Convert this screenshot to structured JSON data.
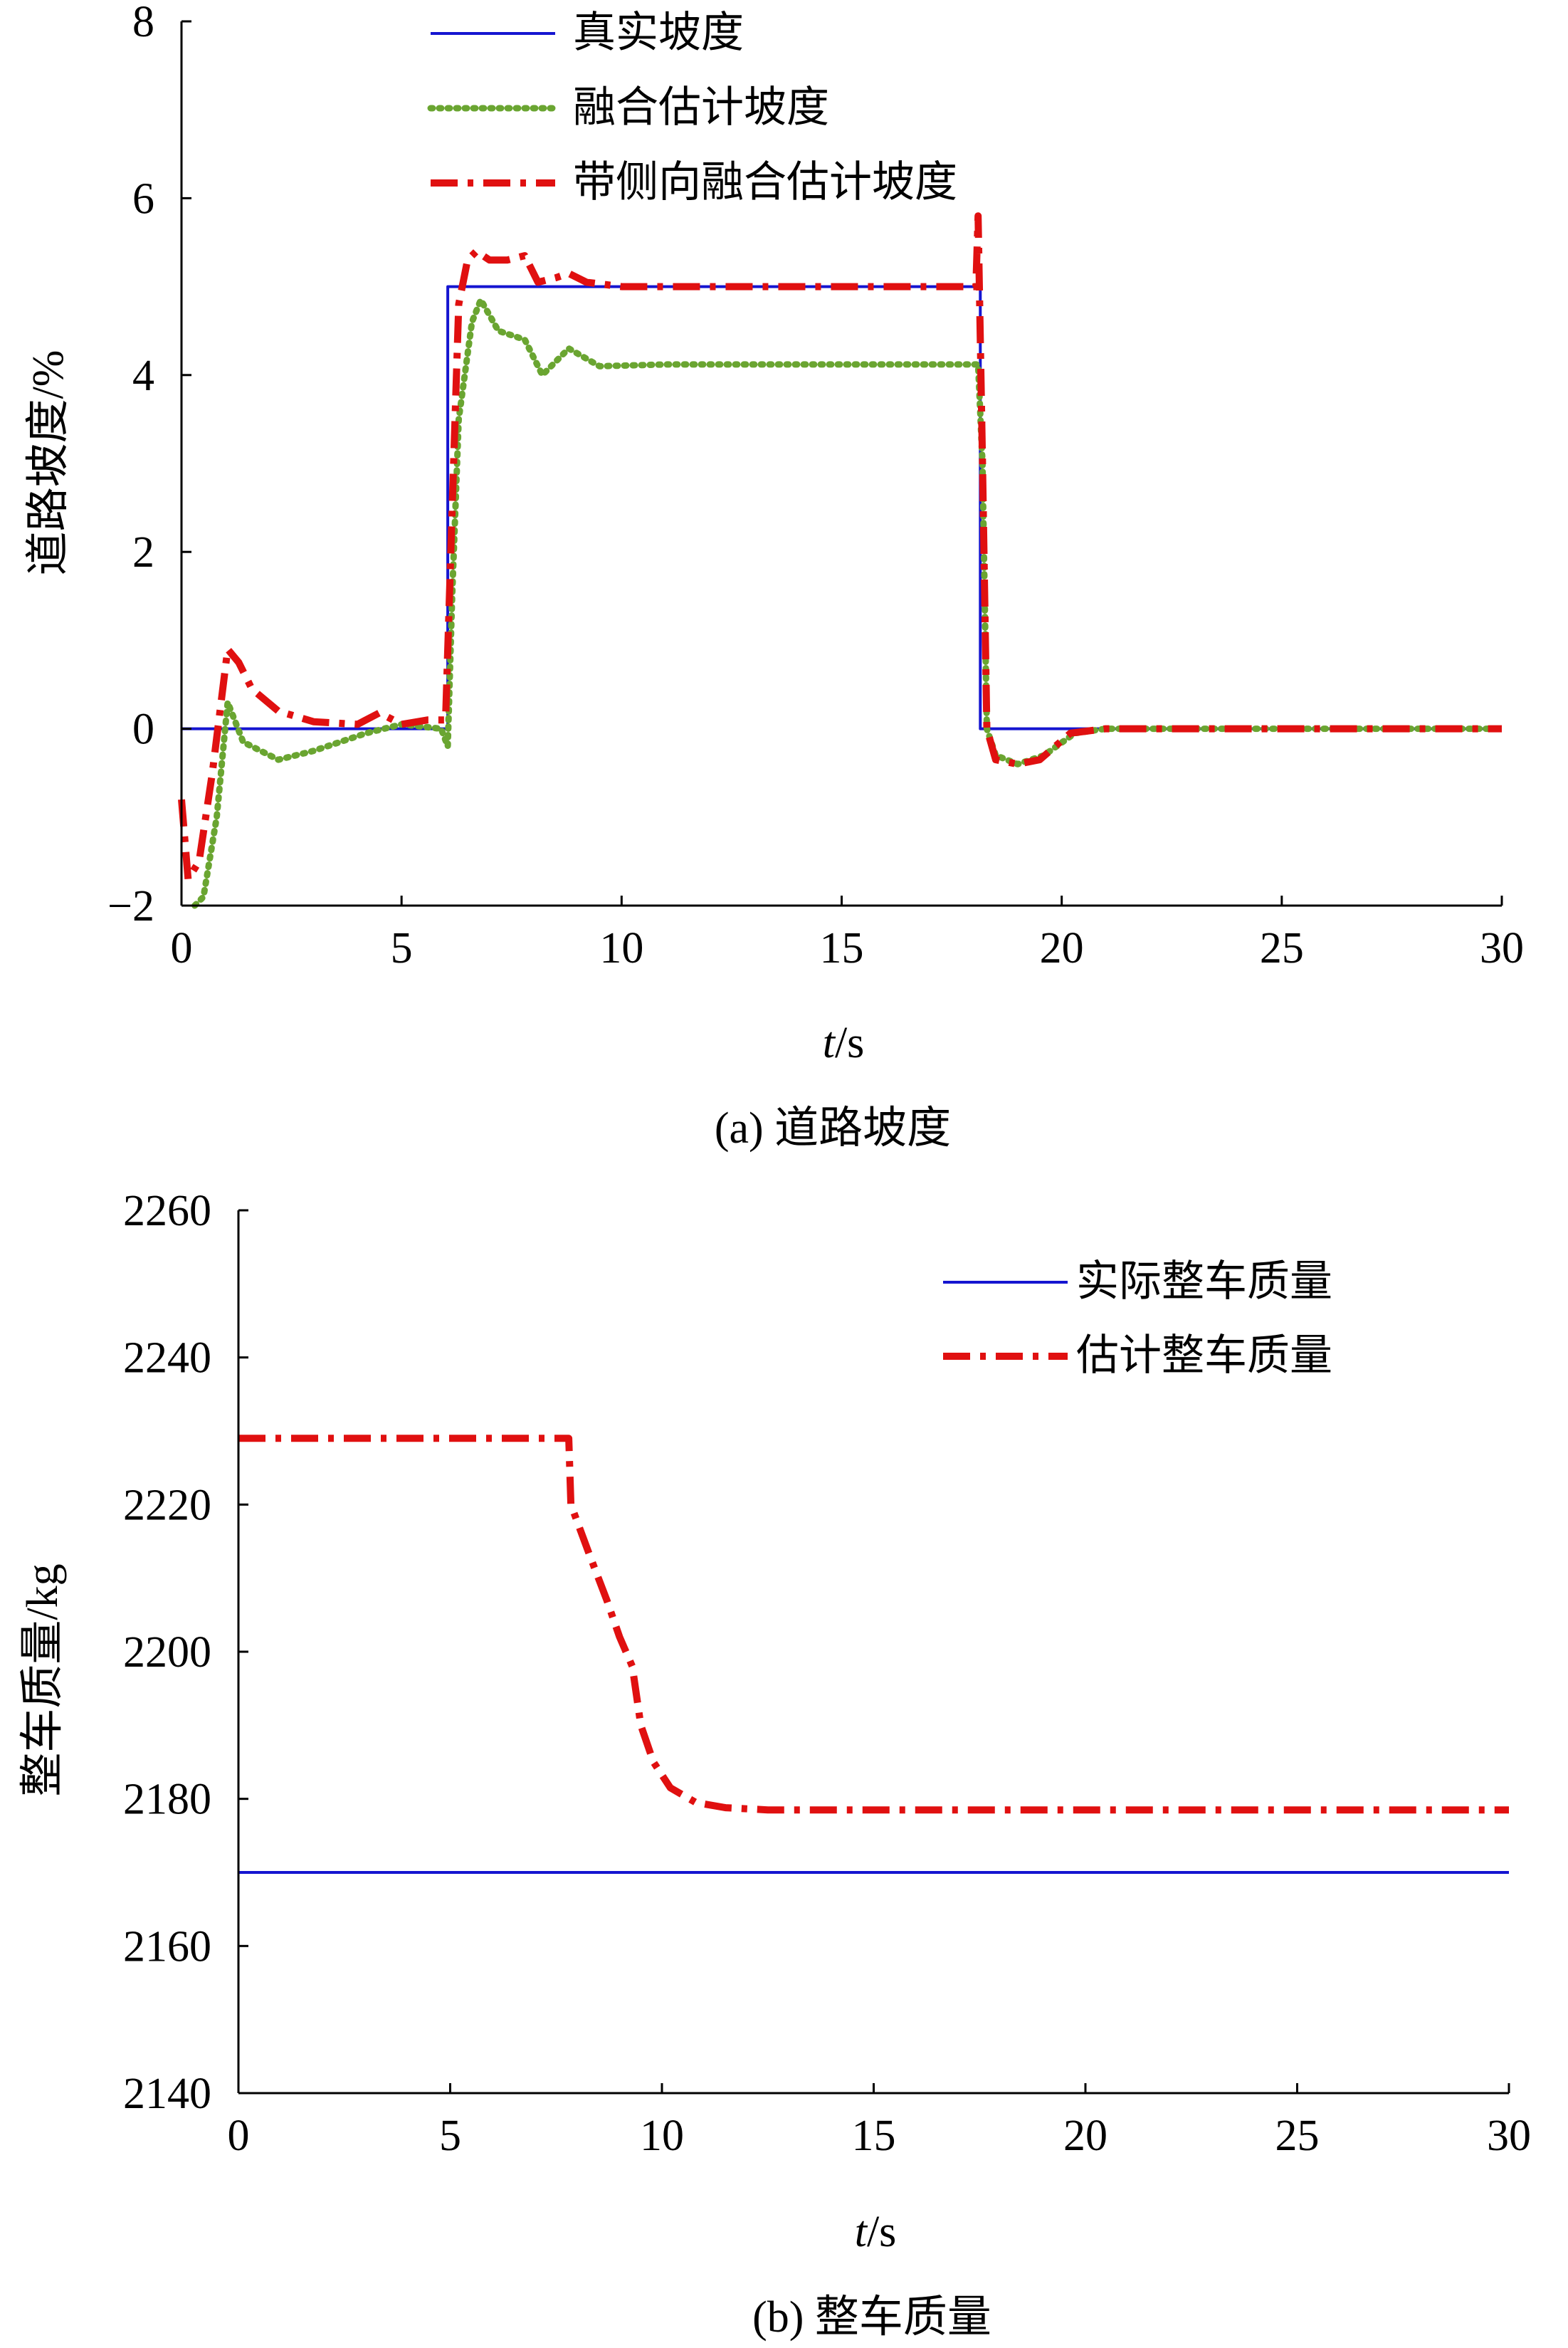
{
  "chart_data": [
    {
      "id": "a",
      "type": "line",
      "caption": "(a) 道路坡度",
      "xlabel_italic": "t",
      "xlabel_unit": "/s",
      "ylabel": "道路坡度/%",
      "xlim": [
        0,
        30
      ],
      "ylim": [
        -2,
        8
      ],
      "xticks": [
        0,
        5,
        10,
        15,
        20,
        25,
        30
      ],
      "yticks": [
        -2,
        0,
        2,
        4,
        6,
        8
      ],
      "ytick_labels": [
        "−2",
        "0",
        "2",
        "4",
        "6",
        "8"
      ],
      "legend_position": "top-center",
      "series": [
        {
          "name": "真实坡度",
          "color": "#1515d0",
          "style": "solid",
          "points": [
            [
              0,
              0
            ],
            [
              6.05,
              0
            ],
            [
              6.05,
              5
            ],
            [
              18.15,
              5
            ],
            [
              18.15,
              0
            ],
            [
              30,
              0
            ]
          ]
        },
        {
          "name": "融合估计坡度",
          "color": "#6aa531",
          "style": "dotted",
          "points": [
            [
              0.3,
              -2
            ],
            [
              0.5,
              -1.9
            ],
            [
              0.8,
              -1
            ],
            [
              1.05,
              0.3
            ],
            [
              1.4,
              -0.15
            ],
            [
              2.2,
              -0.35
            ],
            [
              3.0,
              -0.25
            ],
            [
              4.2,
              -0.05
            ],
            [
              5.0,
              0.05
            ],
            [
              5.9,
              0.0
            ],
            [
              6.05,
              -0.2
            ],
            [
              6.15,
              1.5
            ],
            [
              6.3,
              3.5
            ],
            [
              6.6,
              4.6
            ],
            [
              6.8,
              4.85
            ],
            [
              7.2,
              4.5
            ],
            [
              7.8,
              4.4
            ],
            [
              8.2,
              4.0
            ],
            [
              8.8,
              4.3
            ],
            [
              9.5,
              4.1
            ],
            [
              11,
              4.12
            ],
            [
              15,
              4.12
            ],
            [
              18.1,
              4.12
            ],
            [
              18.2,
              3.0
            ],
            [
              18.3,
              0.0
            ],
            [
              18.5,
              -0.3
            ],
            [
              19.0,
              -0.4
            ],
            [
              19.6,
              -0.3
            ],
            [
              20.3,
              -0.05
            ],
            [
              21,
              0
            ],
            [
              30,
              0
            ]
          ]
        },
        {
          "name": "带侧向融合估计坡度",
          "color": "#e01010",
          "style": "dashdot",
          "points": [
            [
              0,
              -0.8
            ],
            [
              0.15,
              -1.7
            ],
            [
              0.4,
              -1.5
            ],
            [
              0.7,
              -0.5
            ],
            [
              1.05,
              0.9
            ],
            [
              1.3,
              0.75
            ],
            [
              1.6,
              0.45
            ],
            [
              2.2,
              0.2
            ],
            [
              3.0,
              0.08
            ],
            [
              4.0,
              0.05
            ],
            [
              4.5,
              0.18
            ],
            [
              5.0,
              0.05
            ],
            [
              5.6,
              0.1
            ],
            [
              6.0,
              0.1
            ],
            [
              6.15,
              2.5
            ],
            [
              6.3,
              4.8
            ],
            [
              6.5,
              5.3
            ],
            [
              6.7,
              5.4
            ],
            [
              7.0,
              5.3
            ],
            [
              7.4,
              5.3
            ],
            [
              7.8,
              5.35
            ],
            [
              8.1,
              5.05
            ],
            [
              8.5,
              5.1
            ],
            [
              8.8,
              5.15
            ],
            [
              9.2,
              5.05
            ],
            [
              10,
              5.0
            ],
            [
              18.05,
              5.0
            ],
            [
              18.1,
              5.8
            ],
            [
              18.2,
              3.0
            ],
            [
              18.3,
              0.0
            ],
            [
              18.5,
              -0.35
            ],
            [
              19.0,
              -0.4
            ],
            [
              19.5,
              -0.35
            ],
            [
              20.2,
              -0.05
            ],
            [
              21,
              0
            ],
            [
              30,
              0
            ]
          ]
        }
      ]
    },
    {
      "id": "b",
      "type": "line",
      "caption": "(b) 整车质量",
      "xlabel_italic": "t",
      "xlabel_unit": "/s",
      "ylabel": "整车质量/kg",
      "xlim": [
        0,
        30
      ],
      "ylim": [
        2140,
        2260
      ],
      "xticks": [
        0,
        5,
        10,
        15,
        20,
        25,
        30
      ],
      "yticks": [
        2140,
        2160,
        2180,
        2200,
        2220,
        2240,
        2260
      ],
      "ytick_labels": [
        "2140",
        "2160",
        "2180",
        "2200",
        "2220",
        "2240",
        "2260"
      ],
      "legend_position": "top-right",
      "series": [
        {
          "name": "实际整车质量",
          "color": "#1515d0",
          "style": "solid",
          "points": [
            [
              0,
              2170
            ],
            [
              30,
              2170
            ]
          ]
        },
        {
          "name": "估计整车质量",
          "color": "#e01010",
          "style": "dashdot",
          "points": [
            [
              0,
              2229
            ],
            [
              7.8,
              2229
            ],
            [
              7.85,
              2220
            ],
            [
              8.3,
              2213
            ],
            [
              8.7,
              2207
            ],
            [
              9.0,
              2202
            ],
            [
              9.3,
              2198
            ],
            [
              9.5,
              2190
            ],
            [
              9.8,
              2185
            ],
            [
              10.2,
              2181.5
            ],
            [
              10.8,
              2179.5
            ],
            [
              11.5,
              2178.8
            ],
            [
              12.5,
              2178.5
            ],
            [
              30,
              2178.5
            ]
          ]
        }
      ]
    }
  ]
}
